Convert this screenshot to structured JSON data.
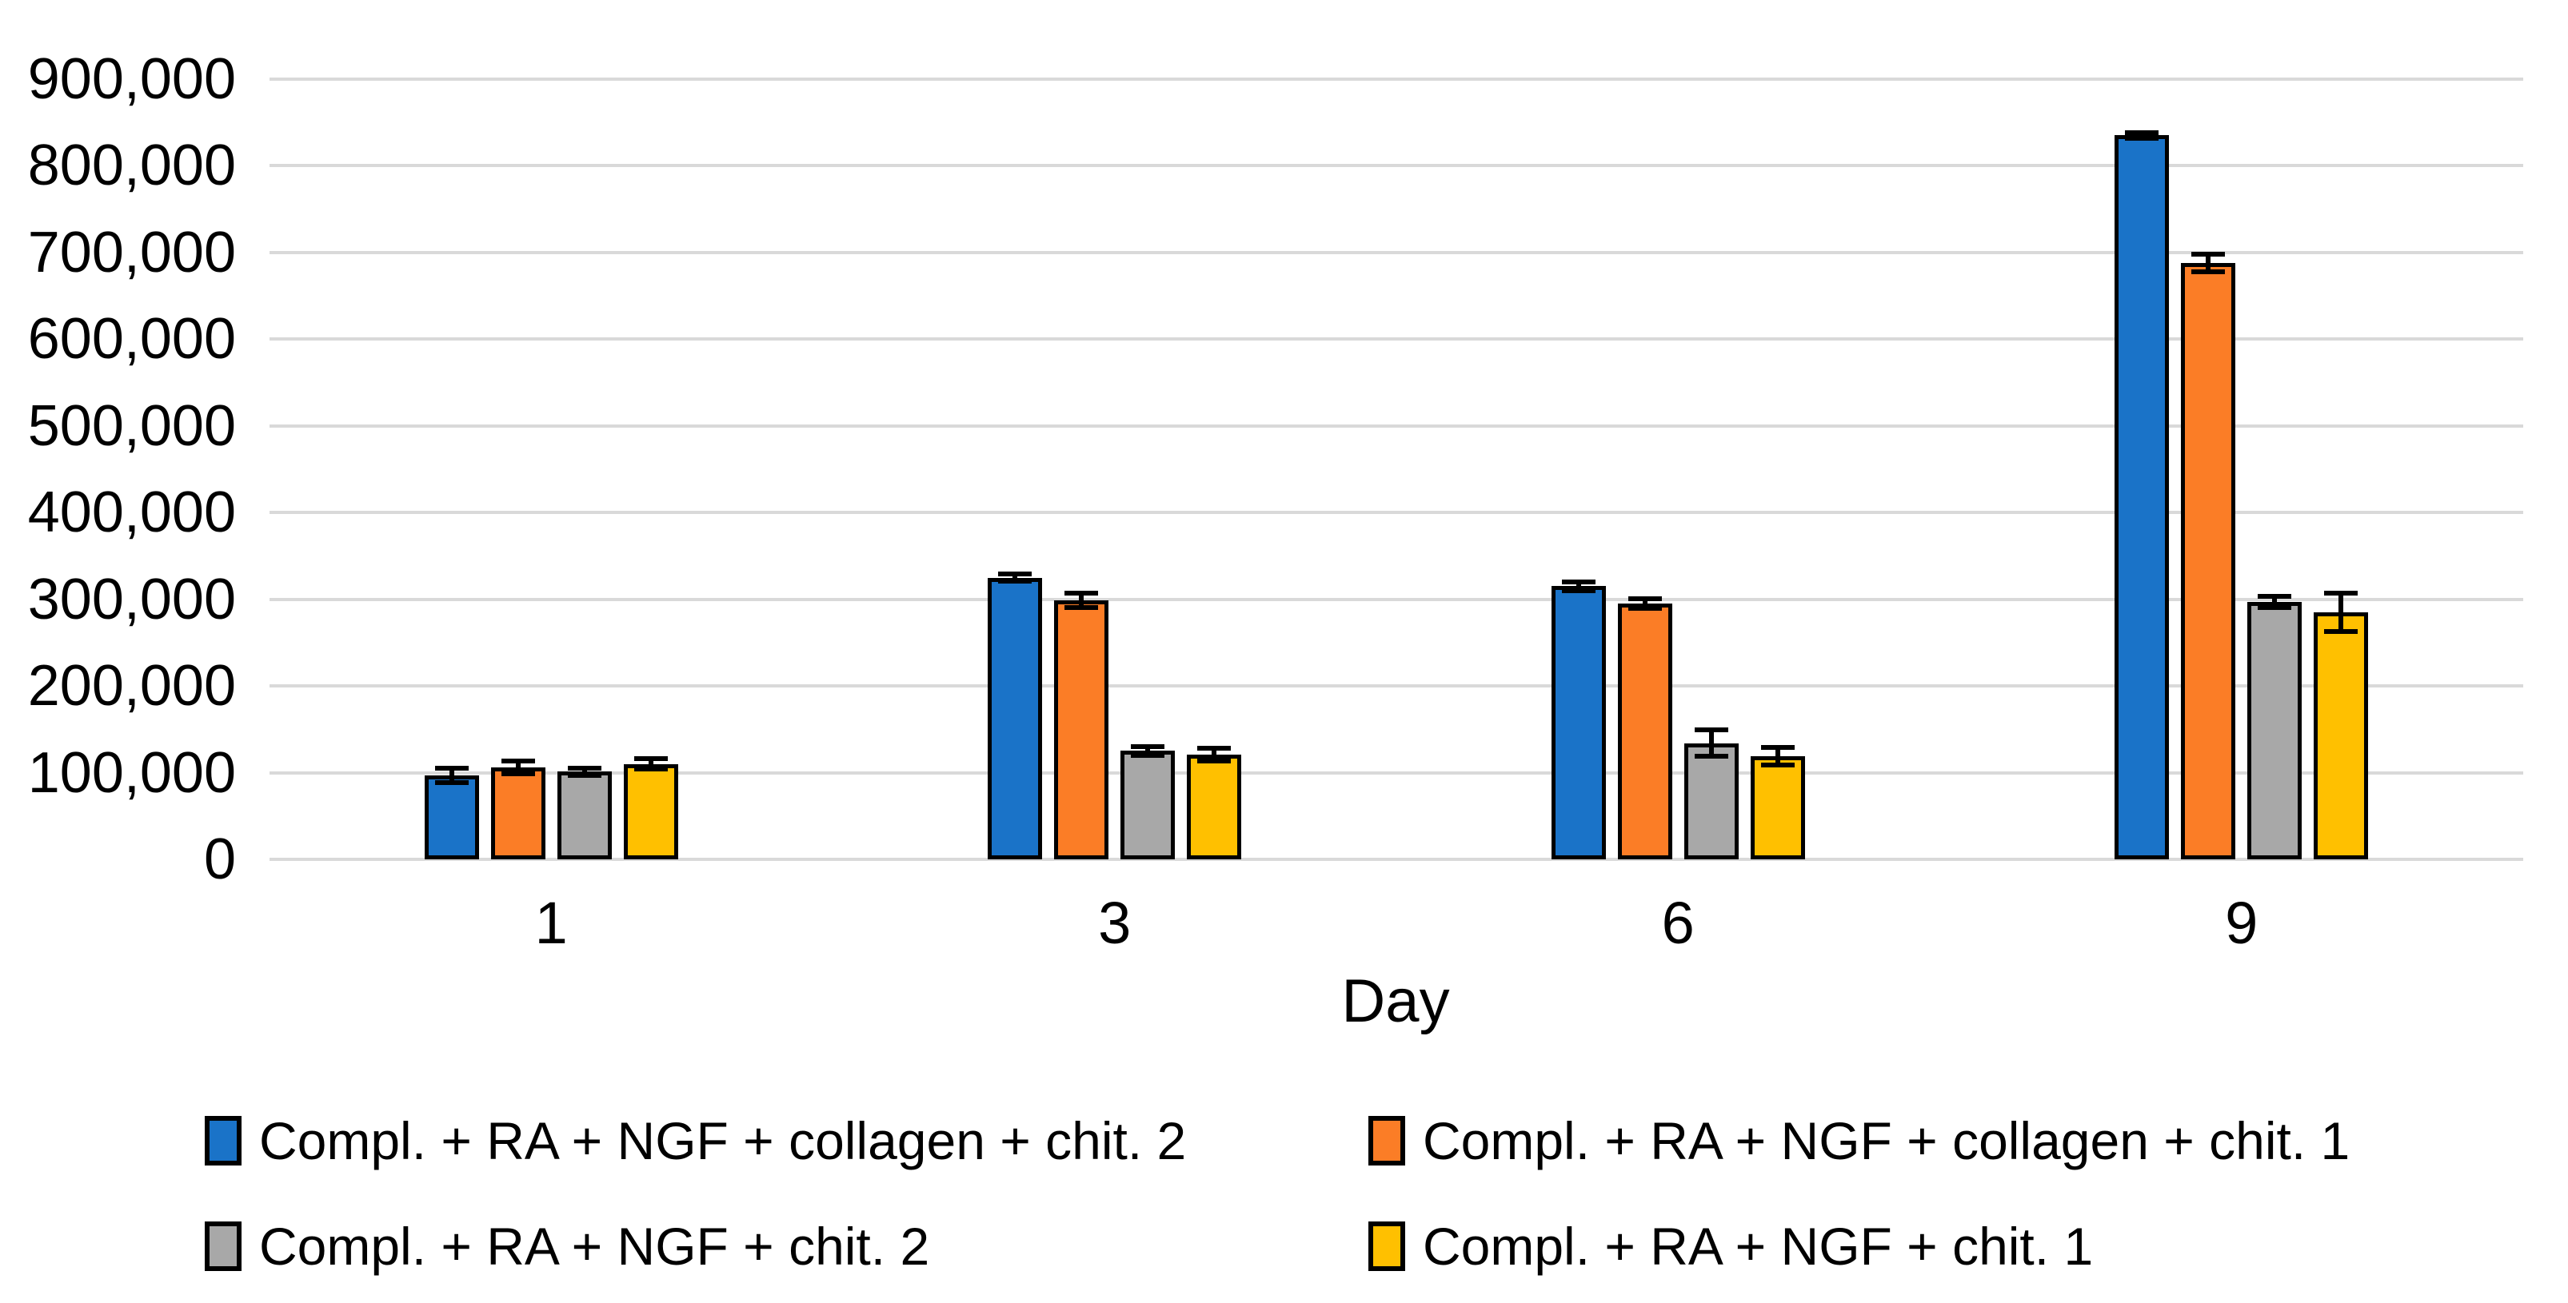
{
  "chart_data": {
    "type": "bar",
    "title": "",
    "xlabel": "Day",
    "ylabel": "",
    "ylim": [
      0,
      900000
    ],
    "ytick_step": 100000,
    "ytick_labels": [
      "0",
      "100,000",
      "200,000",
      "300,000",
      "400,000",
      "500,000",
      "600,000",
      "700,000",
      "800,000",
      "900,000"
    ],
    "categories": [
      "1",
      "3",
      "6",
      "9"
    ],
    "series": [
      {
        "name": "Compl. + RA + NGF + collagen + chit. 2",
        "color": "#1a73c8",
        "values": [
          97000,
          325000,
          315000,
          835000
        ],
        "errors": [
          11000,
          7000,
          8000,
          6000
        ]
      },
      {
        "name": "Compl. + RA + NGF + collagen + chit. 1",
        "color": "#fb7d26",
        "values": [
          106000,
          299000,
          295000,
          688000
        ],
        "errors": [
          10000,
          11000,
          8000,
          13000
        ]
      },
      {
        "name": "Compl. + RA + NGF + chit. 2",
        "color": "#a8a8a8",
        "values": [
          101000,
          125000,
          134000,
          297000
        ],
        "errors": [
          7000,
          8000,
          18000,
          9000
        ]
      },
      {
        "name": "Compl. + RA + NGF + chit. 1",
        "color": "#ffc000",
        "values": [
          110000,
          121000,
          119000,
          285000
        ],
        "errors": [
          9000,
          10000,
          13000,
          25000
        ]
      }
    ],
    "grid": true,
    "gridline_color": "#d9d9d9",
    "bar_border_color": "#000000",
    "error_bar_color": "#000000",
    "legend_position": "bottom",
    "legend_columns": 2
  }
}
